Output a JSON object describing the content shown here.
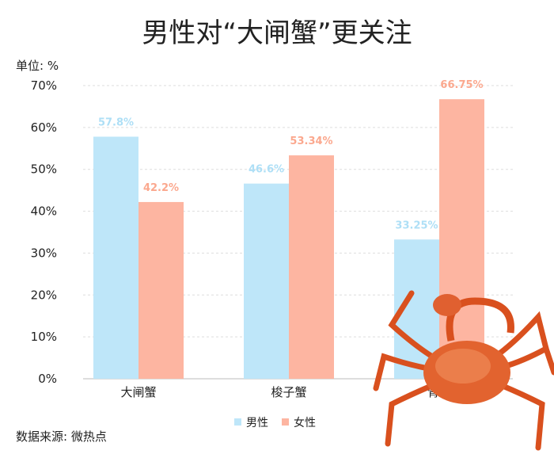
{
  "chart_data": {
    "type": "bar",
    "title": "男性对“大闸蟹”更关注",
    "unit_label": "单位: %",
    "source": "数据来源: 微热点",
    "categories": [
      "大闸蟹",
      "梭子蟹",
      "青蟹"
    ],
    "series": [
      {
        "name": "男性",
        "values": [
          57.8,
          46.6,
          33.25
        ],
        "labels": [
          "57.8%",
          "46.6%",
          "33.25%"
        ],
        "color": "#bee6f9",
        "label_color": "#aedff6"
      },
      {
        "name": "女性",
        "values": [
          42.2,
          53.34,
          66.75
        ],
        "labels": [
          "42.2%",
          "53.34%",
          "66.75%"
        ],
        "color": "#fdb5a1",
        "label_color": "#fba88e"
      }
    ],
    "ylim": [
      0,
      70
    ],
    "yticks": [
      "0%",
      "10%",
      "20%",
      "30%",
      "40%",
      "50%",
      "60%",
      "70%"
    ],
    "grid": true,
    "legend": "bottom-center"
  }
}
